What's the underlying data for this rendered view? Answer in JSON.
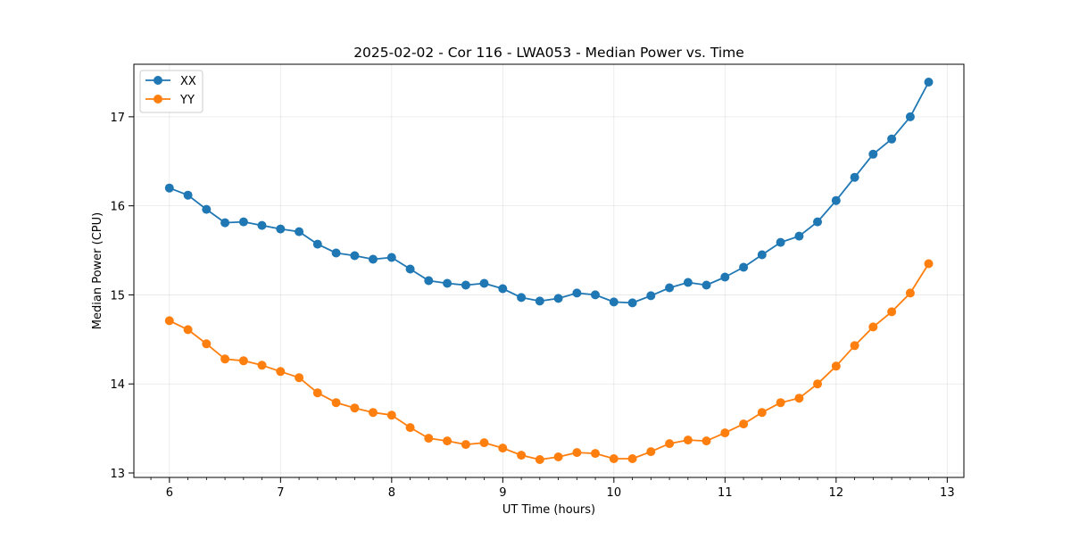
{
  "chart_data": {
    "type": "line",
    "title": "2025-02-02 - Cor 116 - LWA053 - Median Power vs. Time",
    "xlabel": "UT Time (hours)",
    "ylabel": "Median Power (CPU)",
    "xlim": [
      5.68,
      13.15
    ],
    "ylim": [
      12.95,
      17.59
    ],
    "xticks": [
      6,
      7,
      8,
      9,
      10,
      11,
      12,
      13
    ],
    "yticks": [
      13,
      14,
      15,
      16,
      17
    ],
    "grid": true,
    "legend_position": "upper-left",
    "x": [
      6.0,
      6.167,
      6.333,
      6.5,
      6.667,
      6.833,
      7.0,
      7.167,
      7.333,
      7.5,
      7.667,
      7.833,
      8.0,
      8.167,
      8.333,
      8.5,
      8.667,
      8.833,
      9.0,
      9.167,
      9.333,
      9.5,
      9.667,
      9.833,
      10.0,
      10.167,
      10.333,
      10.5,
      10.667,
      10.833,
      11.0,
      11.167,
      11.333,
      11.5,
      11.667,
      11.833,
      12.0,
      12.167,
      12.333,
      12.5,
      12.667,
      12.833
    ],
    "series": [
      {
        "name": "XX",
        "color": "#1f77b4",
        "values": [
          16.2,
          16.12,
          15.96,
          15.81,
          15.82,
          15.78,
          15.74,
          15.71,
          15.57,
          15.47,
          15.44,
          15.4,
          15.42,
          15.29,
          15.16,
          15.13,
          15.11,
          15.13,
          15.07,
          14.97,
          14.93,
          14.96,
          15.02,
          15.0,
          14.92,
          14.91,
          14.99,
          15.08,
          15.14,
          15.11,
          15.2,
          15.31,
          15.45,
          15.59,
          15.66,
          15.82,
          16.06,
          16.32,
          16.58,
          16.75,
          17.0,
          17.39
        ]
      },
      {
        "name": "YY",
        "color": "#ff7f0e",
        "values": [
          14.71,
          14.61,
          14.45,
          14.28,
          14.26,
          14.21,
          14.14,
          14.07,
          13.9,
          13.79,
          13.73,
          13.68,
          13.65,
          13.51,
          13.39,
          13.36,
          13.32,
          13.34,
          13.28,
          13.2,
          13.15,
          13.18,
          13.23,
          13.22,
          13.16,
          13.16,
          13.24,
          13.33,
          13.37,
          13.36,
          13.45,
          13.55,
          13.68,
          13.79,
          13.84,
          14.0,
          14.2,
          14.43,
          14.64,
          14.81,
          15.02,
          15.35
        ]
      }
    ]
  }
}
